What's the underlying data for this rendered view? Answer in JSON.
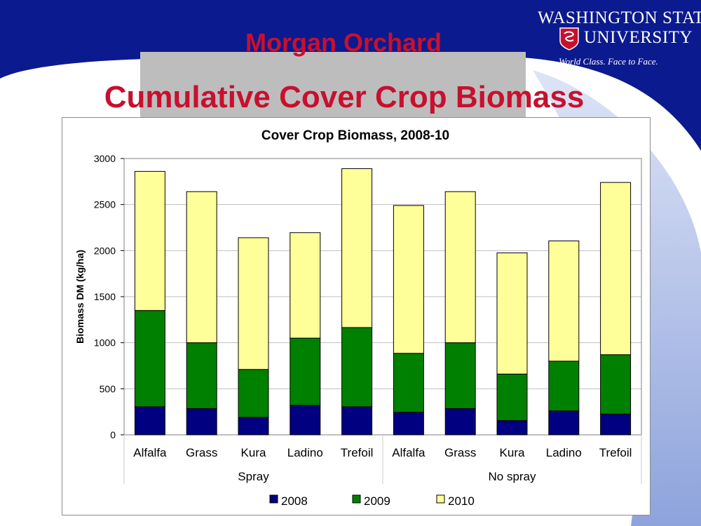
{
  "slide": {
    "subtitle": "Morgan Orchard",
    "title": "Cumulative Cover Crop Biomass"
  },
  "logo": {
    "line1": "WASHINGTON STATE",
    "line2": "UNIVERSITY",
    "tagline": "World Class. Face to Face."
  },
  "colors": {
    "title_red": "#c8102e",
    "banner_blue": "#0b1a8e",
    "series_2008": "#000080",
    "series_2009": "#008000",
    "series_2010": "#ffff99",
    "plot_bg": "#ffffff",
    "grid": "#bfbfbf"
  },
  "chart_data": {
    "type": "bar",
    "stacked": true,
    "title": "Cover Crop Biomass, 2008-10",
    "ylabel": "Biomass DM (kg/ha)",
    "xlabel": "",
    "ylim": [
      0,
      3000
    ],
    "yticks": [
      0,
      500,
      1000,
      1500,
      2000,
      2500,
      3000
    ],
    "grid": true,
    "legend_position": "bottom",
    "groups": [
      {
        "name": "Spray",
        "categories": [
          "Alfalfa",
          "Grass",
          "Kura",
          "Ladino",
          "Trefoil"
        ]
      },
      {
        "name": "No spray",
        "categories": [
          "Alfalfa",
          "Grass",
          "Kura",
          "Ladino",
          "Trefoil"
        ]
      }
    ],
    "categories": [
      "Alfalfa",
      "Grass",
      "Kura",
      "Ladino",
      "Trefoil",
      "Alfalfa",
      "Grass",
      "Kura",
      "Ladino",
      "Trefoil"
    ],
    "series": [
      {
        "name": "2008",
        "values": [
          305,
          285,
          190,
          320,
          305,
          245,
          285,
          155,
          260,
          225
        ]
      },
      {
        "name": "2009",
        "values": [
          1045,
          715,
          520,
          730,
          860,
          640,
          715,
          505,
          540,
          645
        ]
      },
      {
        "name": "2010",
        "values": [
          1510,
          1640,
          1430,
          1145,
          1725,
          1605,
          1640,
          1315,
          1305,
          1870
        ]
      }
    ]
  }
}
